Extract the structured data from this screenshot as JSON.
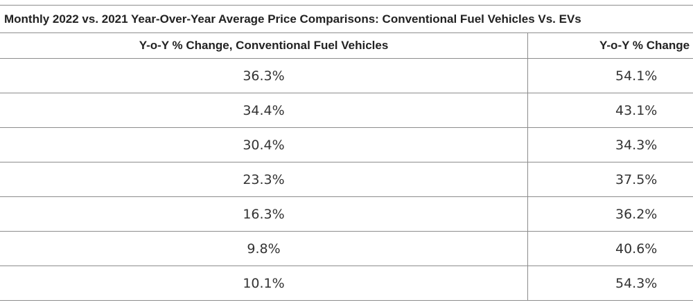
{
  "table": {
    "title": "Monthly 2022 vs. 2021 Year-Over-Year Average Price Comparisons: Conventional Fuel Vehicles Vs. EVs",
    "columns": [
      "Y-o-Y % Change, Conventional Fuel Vehicles",
      "Y-o-Y % Change"
    ],
    "rows": [
      [
        "36.3%",
        "54.1%"
      ],
      [
        "34.4%",
        "43.1%"
      ],
      [
        "30.4%",
        "34.3%"
      ],
      [
        "23.3%",
        "37.5%"
      ],
      [
        "16.3%",
        "36.2%"
      ],
      [
        "9.8%",
        "40.6%"
      ],
      [
        "10.1%",
        "54.3%"
      ]
    ]
  }
}
